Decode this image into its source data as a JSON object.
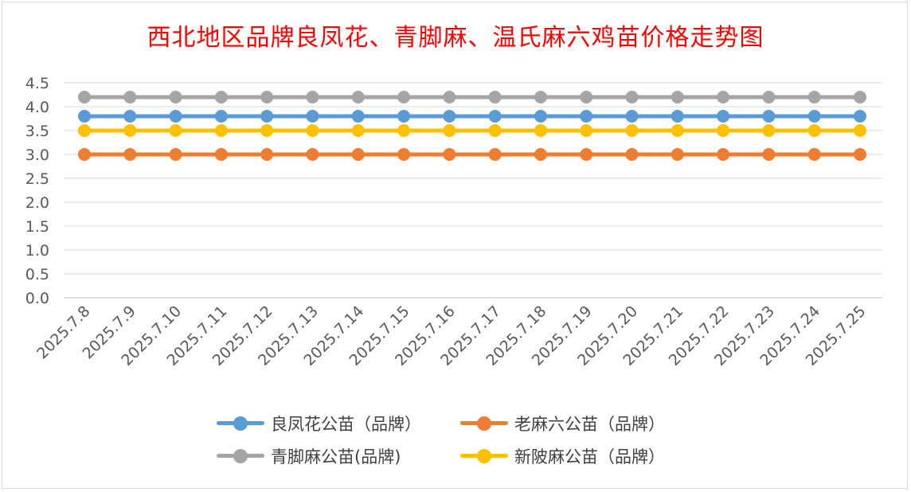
{
  "chart_data": {
    "type": "line",
    "title": "西北地区品牌良凤花、青脚麻、温氏麻六鸡苗价格走势图",
    "categories": [
      "2025.7.8",
      "2025.7.9",
      "2025.7.10",
      "2025.7.11",
      "2025.7.12",
      "2025.7.13",
      "2025.7.14",
      "2025.7.15",
      "2025.7.16",
      "2025.7.17",
      "2025.7.18",
      "2025.7.19",
      "2025.7.20",
      "2025.7.21",
      "2025.7.22",
      "2025.7.23",
      "2025.7.24",
      "2025.7.25"
    ],
    "y_ticks": [
      "0.0",
      "0.5",
      "1.0",
      "1.5",
      "2.0",
      "2.5",
      "3.0",
      "3.5",
      "4.0",
      "4.5"
    ],
    "ylim": [
      0,
      4.5
    ],
    "grid": true,
    "legend_position": "bottom",
    "series": [
      {
        "name": "良凤花公苗（品牌）",
        "color": "#5b9bd5",
        "values": [
          3.8,
          3.8,
          3.8,
          3.8,
          3.8,
          3.8,
          3.8,
          3.8,
          3.8,
          3.8,
          3.8,
          3.8,
          3.8,
          3.8,
          3.8,
          3.8,
          3.8,
          3.8
        ]
      },
      {
        "name": "老麻六公苗（品牌）",
        "color": "#ed7d31",
        "values": [
          3.0,
          3.0,
          3.0,
          3.0,
          3.0,
          3.0,
          3.0,
          3.0,
          3.0,
          3.0,
          3.0,
          3.0,
          3.0,
          3.0,
          3.0,
          3.0,
          3.0,
          3.0
        ]
      },
      {
        "name": "青脚麻公苗(品牌)",
        "color": "#a5a5a5",
        "values": [
          4.2,
          4.2,
          4.2,
          4.2,
          4.2,
          4.2,
          4.2,
          4.2,
          4.2,
          4.2,
          4.2,
          4.2,
          4.2,
          4.2,
          4.2,
          4.2,
          4.2,
          4.2
        ]
      },
      {
        "name": "新陂麻公苗（品牌）",
        "color": "#ffc000",
        "values": [
          3.5,
          3.5,
          3.5,
          3.5,
          3.5,
          3.5,
          3.5,
          3.5,
          3.5,
          3.5,
          3.5,
          3.5,
          3.5,
          3.5,
          3.5,
          3.5,
          3.5,
          3.5
        ]
      }
    ]
  }
}
